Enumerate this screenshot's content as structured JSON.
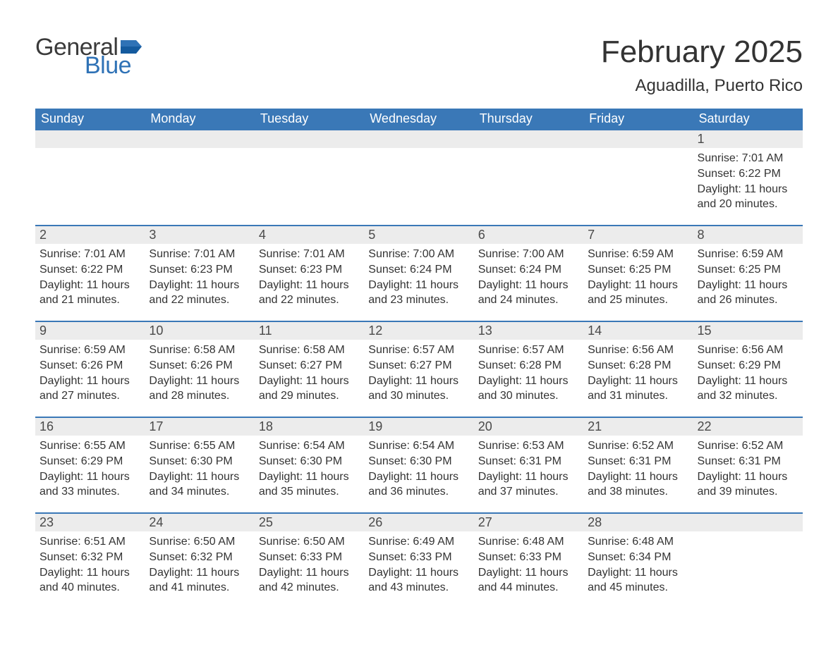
{
  "brand": {
    "word1": "General",
    "word2": "Blue",
    "word1_color": "#3a3a3a",
    "word2_color": "#2f72b6",
    "flag_color": "#2f72b6"
  },
  "header": {
    "month_title": "February 2025",
    "location": "Aguadilla, Puerto Rico"
  },
  "colors": {
    "header_bar_bg": "#3a78b7",
    "header_bar_text": "#ffffff",
    "daynum_bg": "#ececec",
    "daynum_border_top": "#3a78b7",
    "body_text": "#333333",
    "page_bg": "#ffffff"
  },
  "typography": {
    "month_title_fontsize": 44,
    "location_fontsize": 24,
    "weekday_fontsize": 18,
    "daynum_fontsize": 18,
    "detail_fontsize": 16,
    "font_family": "Arial"
  },
  "weekday_labels": [
    "Sunday",
    "Monday",
    "Tuesday",
    "Wednesday",
    "Thursday",
    "Friday",
    "Saturday"
  ],
  "weeks": [
    {
      "days": [
        null,
        null,
        null,
        null,
        null,
        null,
        {
          "num": "1",
          "sunrise": "Sunrise: 7:01 AM",
          "sunset": "Sunset: 6:22 PM",
          "daylight1": "Daylight: 11 hours",
          "daylight2": "and 20 minutes."
        }
      ]
    },
    {
      "days": [
        {
          "num": "2",
          "sunrise": "Sunrise: 7:01 AM",
          "sunset": "Sunset: 6:22 PM",
          "daylight1": "Daylight: 11 hours",
          "daylight2": "and 21 minutes."
        },
        {
          "num": "3",
          "sunrise": "Sunrise: 7:01 AM",
          "sunset": "Sunset: 6:23 PM",
          "daylight1": "Daylight: 11 hours",
          "daylight2": "and 22 minutes."
        },
        {
          "num": "4",
          "sunrise": "Sunrise: 7:01 AM",
          "sunset": "Sunset: 6:23 PM",
          "daylight1": "Daylight: 11 hours",
          "daylight2": "and 22 minutes."
        },
        {
          "num": "5",
          "sunrise": "Sunrise: 7:00 AM",
          "sunset": "Sunset: 6:24 PM",
          "daylight1": "Daylight: 11 hours",
          "daylight2": "and 23 minutes."
        },
        {
          "num": "6",
          "sunrise": "Sunrise: 7:00 AM",
          "sunset": "Sunset: 6:24 PM",
          "daylight1": "Daylight: 11 hours",
          "daylight2": "and 24 minutes."
        },
        {
          "num": "7",
          "sunrise": "Sunrise: 6:59 AM",
          "sunset": "Sunset: 6:25 PM",
          "daylight1": "Daylight: 11 hours",
          "daylight2": "and 25 minutes."
        },
        {
          "num": "8",
          "sunrise": "Sunrise: 6:59 AM",
          "sunset": "Sunset: 6:25 PM",
          "daylight1": "Daylight: 11 hours",
          "daylight2": "and 26 minutes."
        }
      ]
    },
    {
      "days": [
        {
          "num": "9",
          "sunrise": "Sunrise: 6:59 AM",
          "sunset": "Sunset: 6:26 PM",
          "daylight1": "Daylight: 11 hours",
          "daylight2": "and 27 minutes."
        },
        {
          "num": "10",
          "sunrise": "Sunrise: 6:58 AM",
          "sunset": "Sunset: 6:26 PM",
          "daylight1": "Daylight: 11 hours",
          "daylight2": "and 28 minutes."
        },
        {
          "num": "11",
          "sunrise": "Sunrise: 6:58 AM",
          "sunset": "Sunset: 6:27 PM",
          "daylight1": "Daylight: 11 hours",
          "daylight2": "and 29 minutes."
        },
        {
          "num": "12",
          "sunrise": "Sunrise: 6:57 AM",
          "sunset": "Sunset: 6:27 PM",
          "daylight1": "Daylight: 11 hours",
          "daylight2": "and 30 minutes."
        },
        {
          "num": "13",
          "sunrise": "Sunrise: 6:57 AM",
          "sunset": "Sunset: 6:28 PM",
          "daylight1": "Daylight: 11 hours",
          "daylight2": "and 30 minutes."
        },
        {
          "num": "14",
          "sunrise": "Sunrise: 6:56 AM",
          "sunset": "Sunset: 6:28 PM",
          "daylight1": "Daylight: 11 hours",
          "daylight2": "and 31 minutes."
        },
        {
          "num": "15",
          "sunrise": "Sunrise: 6:56 AM",
          "sunset": "Sunset: 6:29 PM",
          "daylight1": "Daylight: 11 hours",
          "daylight2": "and 32 minutes."
        }
      ]
    },
    {
      "days": [
        {
          "num": "16",
          "sunrise": "Sunrise: 6:55 AM",
          "sunset": "Sunset: 6:29 PM",
          "daylight1": "Daylight: 11 hours",
          "daylight2": "and 33 minutes."
        },
        {
          "num": "17",
          "sunrise": "Sunrise: 6:55 AM",
          "sunset": "Sunset: 6:30 PM",
          "daylight1": "Daylight: 11 hours",
          "daylight2": "and 34 minutes."
        },
        {
          "num": "18",
          "sunrise": "Sunrise: 6:54 AM",
          "sunset": "Sunset: 6:30 PM",
          "daylight1": "Daylight: 11 hours",
          "daylight2": "and 35 minutes."
        },
        {
          "num": "19",
          "sunrise": "Sunrise: 6:54 AM",
          "sunset": "Sunset: 6:30 PM",
          "daylight1": "Daylight: 11 hours",
          "daylight2": "and 36 minutes."
        },
        {
          "num": "20",
          "sunrise": "Sunrise: 6:53 AM",
          "sunset": "Sunset: 6:31 PM",
          "daylight1": "Daylight: 11 hours",
          "daylight2": "and 37 minutes."
        },
        {
          "num": "21",
          "sunrise": "Sunrise: 6:52 AM",
          "sunset": "Sunset: 6:31 PM",
          "daylight1": "Daylight: 11 hours",
          "daylight2": "and 38 minutes."
        },
        {
          "num": "22",
          "sunrise": "Sunrise: 6:52 AM",
          "sunset": "Sunset: 6:31 PM",
          "daylight1": "Daylight: 11 hours",
          "daylight2": "and 39 minutes."
        }
      ]
    },
    {
      "days": [
        {
          "num": "23",
          "sunrise": "Sunrise: 6:51 AM",
          "sunset": "Sunset: 6:32 PM",
          "daylight1": "Daylight: 11 hours",
          "daylight2": "and 40 minutes."
        },
        {
          "num": "24",
          "sunrise": "Sunrise: 6:50 AM",
          "sunset": "Sunset: 6:32 PM",
          "daylight1": "Daylight: 11 hours",
          "daylight2": "and 41 minutes."
        },
        {
          "num": "25",
          "sunrise": "Sunrise: 6:50 AM",
          "sunset": "Sunset: 6:33 PM",
          "daylight1": "Daylight: 11 hours",
          "daylight2": "and 42 minutes."
        },
        {
          "num": "26",
          "sunrise": "Sunrise: 6:49 AM",
          "sunset": "Sunset: 6:33 PM",
          "daylight1": "Daylight: 11 hours",
          "daylight2": "and 43 minutes."
        },
        {
          "num": "27",
          "sunrise": "Sunrise: 6:48 AM",
          "sunset": "Sunset: 6:33 PM",
          "daylight1": "Daylight: 11 hours",
          "daylight2": "and 44 minutes."
        },
        {
          "num": "28",
          "sunrise": "Sunrise: 6:48 AM",
          "sunset": "Sunset: 6:34 PM",
          "daylight1": "Daylight: 11 hours",
          "daylight2": "and 45 minutes."
        },
        null
      ]
    }
  ]
}
